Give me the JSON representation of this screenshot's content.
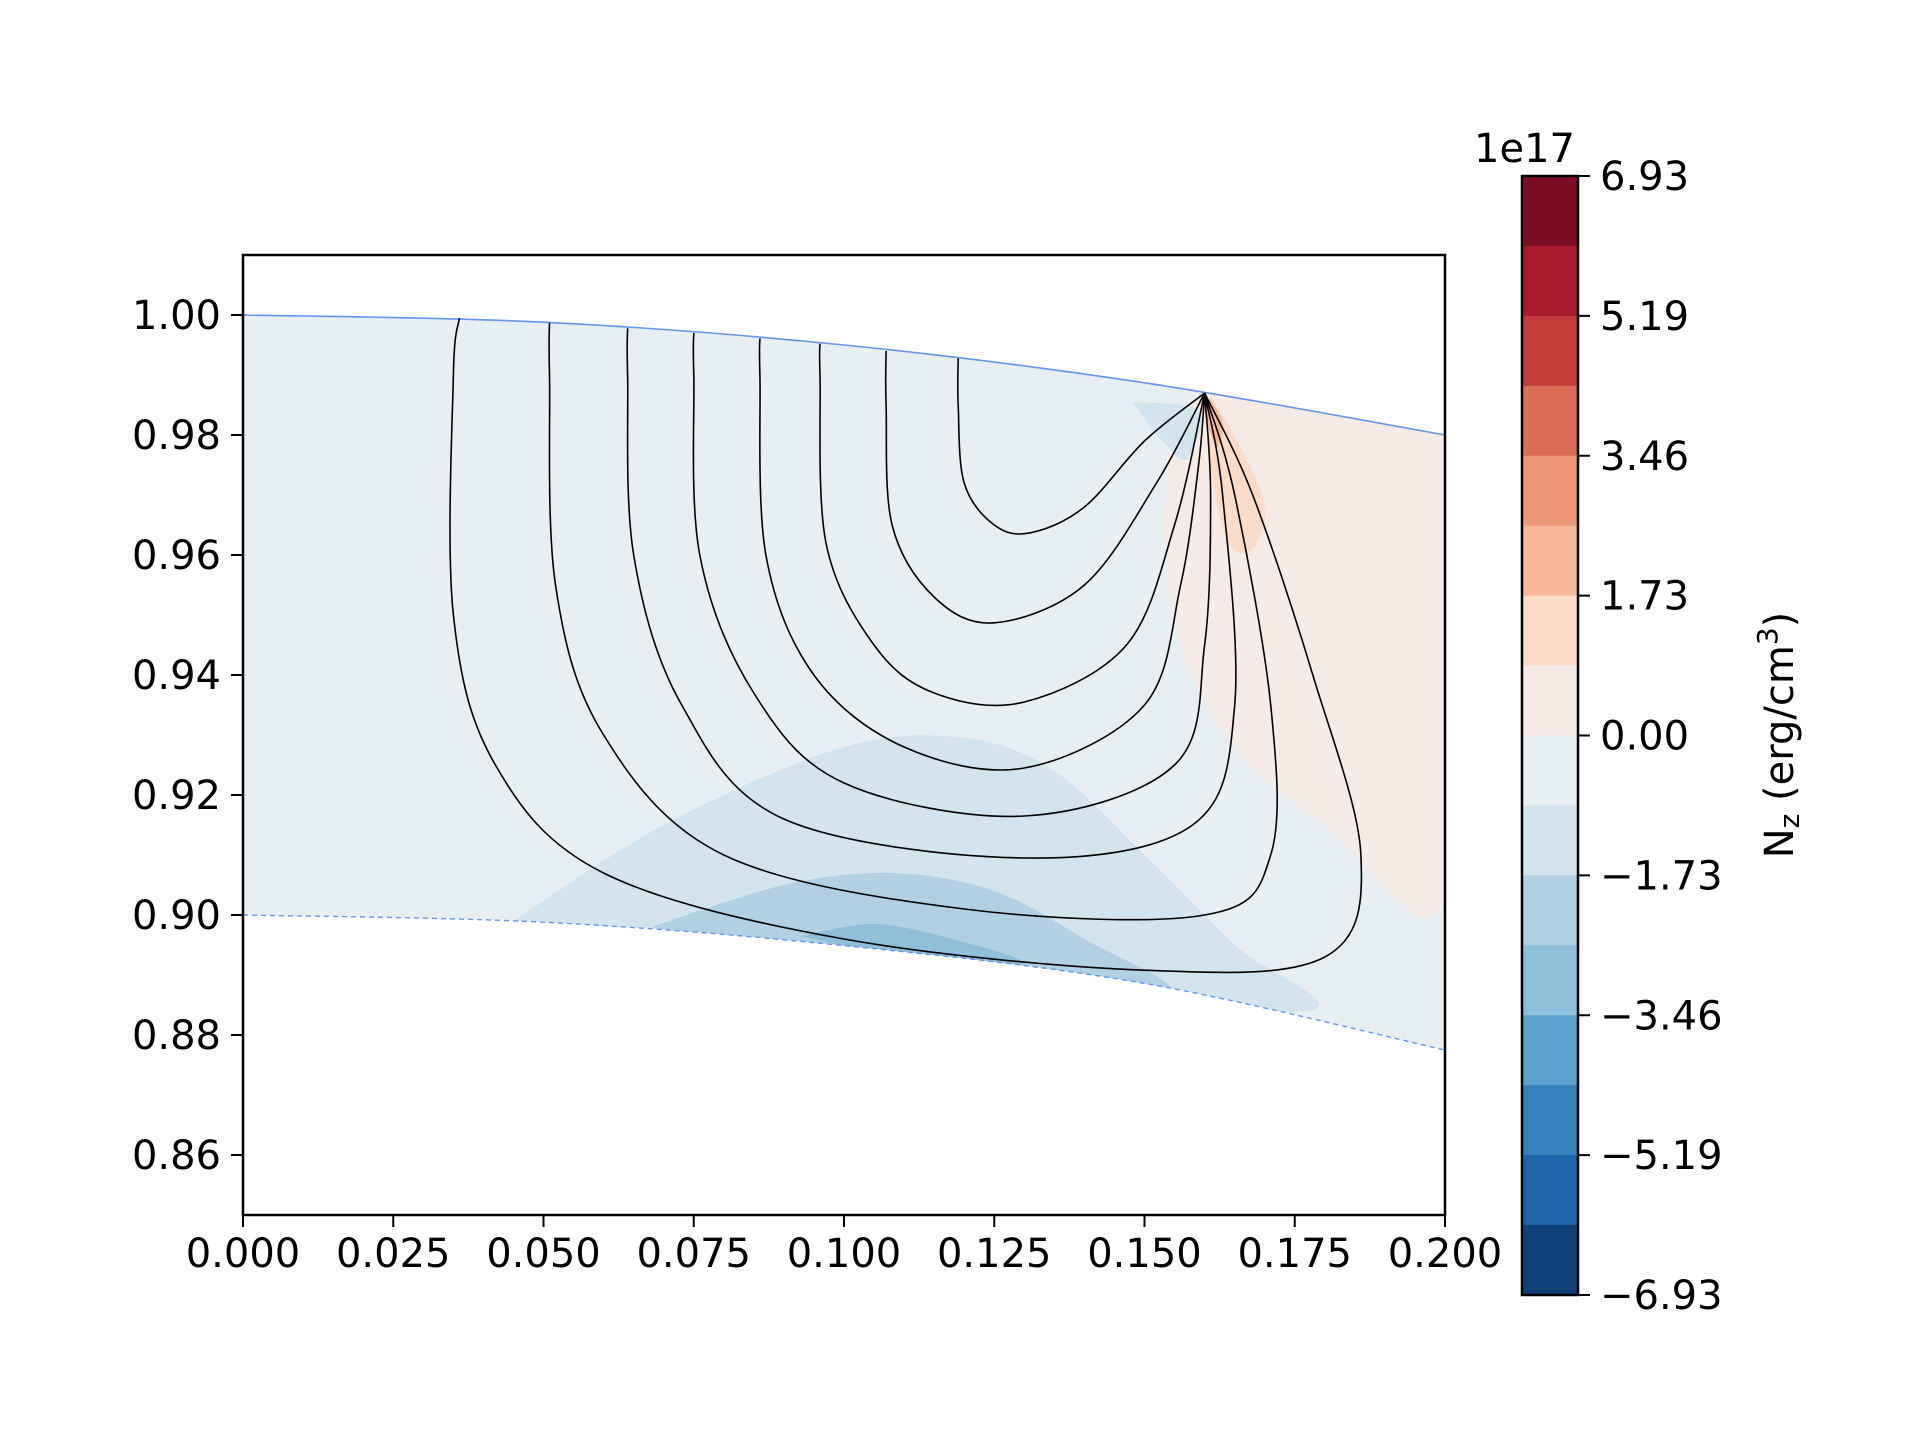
{
  "chart_data": {
    "type": "contour",
    "title": "",
    "xlabel": "",
    "ylabel": "",
    "xlim": [
      0.0,
      0.2
    ],
    "ylim": [
      0.85,
      1.01
    ],
    "x_ticks": [
      "0.000",
      "0.025",
      "0.050",
      "0.075",
      "0.100",
      "0.125",
      "0.150",
      "0.175",
      "0.200"
    ],
    "y_ticks": [
      "0.86",
      "0.88",
      "0.90",
      "0.92",
      "0.94",
      "0.96",
      "0.98",
      "1.00"
    ],
    "grid": false,
    "boundaries": [
      {
        "style": "solid",
        "color": "#6495ed",
        "points": [
          [
            0.0,
            1.0
          ],
          [
            0.05,
            0.9988
          ],
          [
            0.1,
            0.995
          ],
          [
            0.15,
            0.9887
          ],
          [
            0.2,
            0.98
          ]
        ]
      },
      {
        "style": "dashed",
        "color": "#6495ed",
        "points": [
          [
            0.0,
            0.9
          ],
          [
            0.05,
            0.8988
          ],
          [
            0.1,
            0.8949
          ],
          [
            0.15,
            0.8886
          ],
          [
            0.2,
            0.8775
          ]
        ]
      }
    ],
    "field_lines": {
      "color": "#000000",
      "footpoint": [
        0.16,
        0.987
      ],
      "lines": [
        {
          "start": [
            0.036,
            0.9995
          ],
          "points": [
            [
              0.035,
              0.99
            ],
            [
              0.035,
              0.95
            ],
            [
              0.042,
              0.925
            ],
            [
              0.06,
              0.907
            ],
            [
              0.1,
              0.896
            ],
            [
              0.15,
              0.8908
            ],
            [
              0.18,
              0.893
            ],
            [
              0.186,
              0.91
            ],
            [
              0.178,
              0.94
            ],
            [
              0.168,
              0.97
            ]
          ]
        },
        {
          "start": [
            0.051,
            0.9987
          ],
          "points": [
            [
              0.051,
              0.99
            ],
            [
              0.052,
              0.955
            ],
            [
              0.06,
              0.93
            ],
            [
              0.08,
              0.91
            ],
            [
              0.12,
              0.901
            ],
            [
              0.16,
              0.9
            ],
            [
              0.171,
              0.91
            ],
            [
              0.171,
              0.935
            ],
            [
              0.165,
              0.97
            ]
          ]
        },
        {
          "start": [
            0.064,
            0.9978
          ],
          "points": [
            [
              0.064,
              0.99
            ],
            [
              0.065,
              0.96
            ],
            [
              0.073,
              0.935
            ],
            [
              0.09,
              0.916
            ],
            [
              0.13,
              0.9095
            ],
            [
              0.158,
              0.915
            ],
            [
              0.165,
              0.935
            ],
            [
              0.163,
              0.97
            ]
          ]
        },
        {
          "start": [
            0.075,
            0.997
          ],
          "points": [
            [
              0.075,
              0.99
            ],
            [
              0.076,
              0.96
            ],
            [
              0.085,
              0.937
            ],
            [
              0.1,
              0.922
            ],
            [
              0.13,
              0.9165
            ],
            [
              0.155,
              0.925
            ],
            [
              0.16,
              0.945
            ],
            [
              0.161,
              0.97
            ]
          ]
        },
        {
          "start": [
            0.086,
            0.9961
          ],
          "points": [
            [
              0.086,
              0.99
            ],
            [
              0.087,
              0.96
            ],
            [
              0.095,
              0.94
            ],
            [
              0.11,
              0.928
            ],
            [
              0.13,
              0.9245
            ],
            [
              0.15,
              0.935
            ],
            [
              0.156,
              0.955
            ],
            [
              0.159,
              0.975
            ]
          ]
        },
        {
          "start": [
            0.096,
            0.9952
          ],
          "points": [
            [
              0.096,
              0.99
            ],
            [
              0.097,
              0.962
            ],
            [
              0.105,
              0.945
            ],
            [
              0.115,
              0.937
            ],
            [
              0.13,
              0.9355
            ],
            [
              0.147,
              0.945
            ],
            [
              0.155,
              0.965
            ]
          ]
        },
        {
          "start": [
            0.107,
            0.994
          ],
          "points": [
            [
              0.107,
              0.985
            ],
            [
              0.108,
              0.965
            ],
            [
              0.115,
              0.953
            ],
            [
              0.125,
              0.9487
            ],
            [
              0.14,
              0.955
            ],
            [
              0.152,
              0.972
            ]
          ]
        },
        {
          "start": [
            0.119,
            0.9928
          ],
          "points": [
            [
              0.119,
              0.985
            ],
            [
              0.12,
              0.972
            ],
            [
              0.125,
              0.965
            ],
            [
              0.131,
              0.9637
            ],
            [
              0.14,
              0.968
            ],
            [
              0.15,
              0.979
            ]
          ]
        }
      ]
    },
    "filled_regions": [
      {
        "level": "-0.87",
        "color": "#e8eff3"
      },
      {
        "level": "-1.73",
        "color": "#d3e4ef"
      },
      {
        "level": "-2.60",
        "color": "#b0d0e3"
      },
      {
        "level": "-3.46",
        "color": "#8ebfdb"
      },
      {
        "level": "0.87",
        "color": "#f6ebe6"
      },
      {
        "level": "1.73",
        "color": "#fcdbc9"
      },
      {
        "level": "2.60",
        "color": "#f7b899"
      }
    ],
    "colorbar": {
      "label": "N_z (erg/cm³)",
      "label_main": "N",
      "label_sub": "z",
      "label_rest": " (erg/cm",
      "label_sup": "3",
      "label_end": ")",
      "offset_text": "1e17",
      "range": [
        -6.93,
        6.93
      ],
      "ticks": [
        "6.93",
        "5.19",
        "3.46",
        "1.73",
        "0.00",
        "−1.73",
        "−3.46",
        "−5.19",
        "−6.93"
      ],
      "colors_top_to_bottom": [
        "#7b0e24",
        "#a81a2c",
        "#c53c3d",
        "#dc6d56",
        "#ee9878",
        "#f7b899",
        "#fcdbc9",
        "#f6ebe6",
        "#e8eff3",
        "#d3e4ef",
        "#b0d0e3",
        "#8ebfdb",
        "#5ca2cc",
        "#3680bb",
        "#1f63a8",
        "#0f4077"
      ]
    }
  }
}
